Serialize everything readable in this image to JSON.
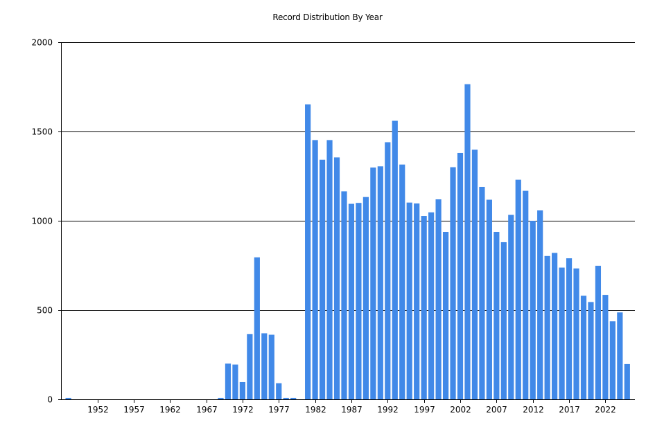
{
  "chart_data": {
    "type": "bar",
    "title": "Record Distribution By Year",
    "xlabel": "",
    "ylabel": "",
    "ylim": [
      0,
      2000
    ],
    "yticks": [
      0,
      500,
      1000,
      1500,
      2000
    ],
    "xticks": [
      1952,
      1957,
      1962,
      1967,
      1972,
      1977,
      1982,
      1987,
      1992,
      1997,
      2002,
      2007,
      2012,
      2017,
      2022
    ],
    "grid": "horizontal",
    "colors": {
      "bar": "#4189E8",
      "grid": "#000000"
    },
    "series": [
      {
        "x": [
          1948,
          1969,
          1970,
          1971,
          1972,
          1973,
          1974,
          1975,
          1976,
          1977,
          1978,
          1979,
          1981,
          1982,
          1983,
          1984,
          1985,
          1986,
          1987,
          1988,
          1989,
          1990,
          1991,
          1992,
          1993,
          1994,
          1995,
          1996,
          1997,
          1998,
          1999,
          2000,
          2001,
          2002,
          2003,
          2004,
          2005,
          2006,
          2007,
          2008,
          2009,
          2010,
          2011,
          2012,
          2013,
          2014,
          2015,
          2016,
          2017,
          2018,
          2019,
          2020,
          2021,
          2022,
          2023,
          2024,
          2025
        ],
        "values": [
          8,
          8,
          200,
          195,
          97,
          365,
          795,
          370,
          362,
          90,
          8,
          8,
          1652,
          1452,
          1342,
          1452,
          1355,
          1165,
          1095,
          1100,
          1133,
          1298,
          1305,
          1440,
          1560,
          1315,
          1102,
          1097,
          1027,
          1047,
          1120,
          938,
          1300,
          1380,
          1765,
          1398,
          1190,
          1118,
          938,
          880,
          1033,
          1230,
          1168,
          1000,
          1058,
          803,
          820,
          738,
          790,
          733,
          580,
          545,
          748,
          585,
          437,
          487,
          198
        ]
      }
    ]
  }
}
